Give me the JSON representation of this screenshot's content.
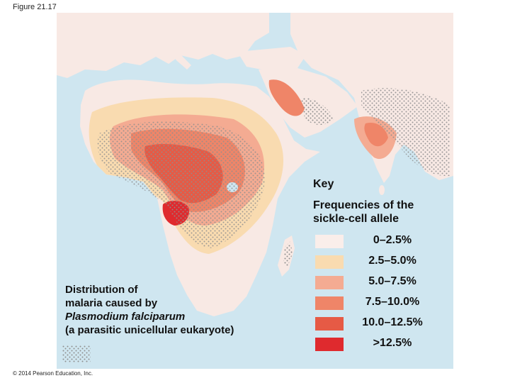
{
  "figure": {
    "label": "Figure 21.17"
  },
  "map": {
    "ocean_color": "#cfe6f0",
    "land_color": "#f8e9e4",
    "malaria_dot_color": "#8f8f8f"
  },
  "key": {
    "title": "Key",
    "subtitle_line1": "Frequencies of the",
    "subtitle_line2": "sickle-cell allele",
    "items": [
      {
        "range": "0–2.5%",
        "color": "#faeeea"
      },
      {
        "range": "2.5–5.0%",
        "color": "#f9dbb0"
      },
      {
        "range": "5.0–7.5%",
        "color": "#f4ab92"
      },
      {
        "range": "7.5–10.0%",
        "color": "#ef8568"
      },
      {
        "range": "10.0–12.5%",
        "color": "#e65a45"
      },
      {
        "range": ">12.5%",
        "color": "#df2a2e"
      }
    ]
  },
  "malaria": {
    "line1": "Distribution of",
    "line2": "malaria caused by",
    "line3": "Plasmodium falciparum",
    "line4": "(a parasitic unicellular eukaryote)"
  },
  "copyright": "© 2014 Pearson Education, Inc."
}
